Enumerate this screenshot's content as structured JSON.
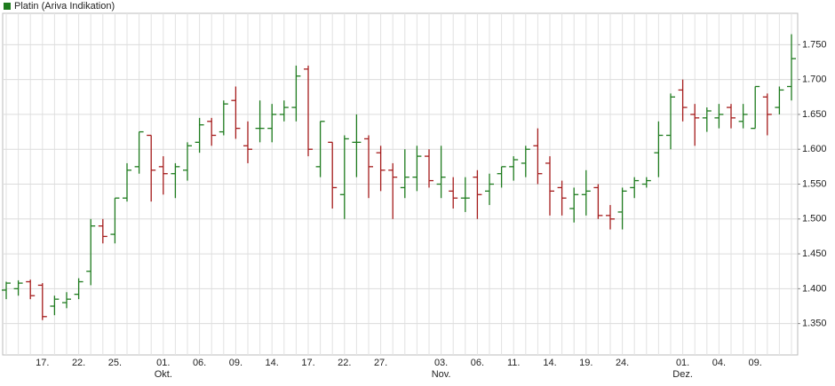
{
  "chart_data": {
    "type": "ohlc",
    "legend": "Platin (Ariva Indikation)",
    "up_color": "#1e7b1e",
    "down_color": "#a51c1c",
    "grid": true,
    "categories": [
      null,
      null,
      null,
      "17.",
      null,
      null,
      "22.",
      null,
      null,
      "25.",
      null,
      null,
      null,
      "01. Okt.",
      null,
      null,
      "06.",
      null,
      null,
      "09.",
      null,
      null,
      "14.",
      null,
      null,
      "17.",
      null,
      null,
      "22.",
      null,
      null,
      "27.",
      null,
      null,
      null,
      null,
      "03. Nov.",
      null,
      null,
      "06.",
      null,
      null,
      "11.",
      null,
      null,
      "14.",
      null,
      null,
      "19.",
      null,
      null,
      "24.",
      null,
      null,
      null,
      null,
      "01. Dez.",
      null,
      null,
      "04.",
      null,
      null,
      "09.",
      null,
      null,
      null
    ],
    "open": [
      1398,
      1400,
      1410,
      1405,
      1375,
      1380,
      1392,
      1425,
      1490,
      1478,
      1530,
      1575,
      1620,
      1575,
      1565,
      1570,
      1610,
      1640,
      1625,
      1670,
      1605,
      1630,
      1630,
      1650,
      1660,
      1715,
      1575,
      1610,
      1535,
      1610,
      1615,
      1595,
      1570,
      1545,
      1560,
      1590,
      1550,
      1540,
      1530,
      1560,
      1540,
      1565,
      1575,
      1580,
      1605,
      1580,
      1545,
      1515,
      1535,
      1545,
      1505,
      1510,
      1545,
      1550,
      1595,
      1620,
      1685,
      1650,
      1645,
      1645,
      1660,
      1640,
      1630,
      1675,
      1660,
      1690
    ],
    "high": [
      1410,
      1412,
      1413,
      1408,
      1390,
      1395,
      1415,
      1500,
      1500,
      1530,
      1580,
      1625,
      1620,
      1590,
      1580,
      1610,
      1645,
      1645,
      1670,
      1690,
      1640,
      1670,
      1665,
      1670,
      1720,
      1720,
      1640,
      1610,
      1620,
      1650,
      1620,
      1605,
      1580,
      1600,
      1605,
      1600,
      1605,
      1560,
      1560,
      1570,
      1565,
      1575,
      1590,
      1605,
      1630,
      1590,
      1555,
      1545,
      1570,
      1550,
      1520,
      1545,
      1560,
      1560,
      1640,
      1680,
      1700,
      1665,
      1660,
      1665,
      1665,
      1665,
      1690,
      1680,
      1690,
      1765
    ],
    "low": [
      1385,
      1390,
      1385,
      1355,
      1362,
      1372,
      1385,
      1405,
      1465,
      1465,
      1525,
      1565,
      1525,
      1535,
      1530,
      1555,
      1595,
      1605,
      1620,
      1615,
      1580,
      1610,
      1610,
      1640,
      1640,
      1590,
      1560,
      1515,
      1500,
      1560,
      1530,
      1540,
      1500,
      1530,
      1540,
      1545,
      1530,
      1515,
      1510,
      1500,
      1520,
      1545,
      1555,
      1560,
      1550,
      1505,
      1505,
      1495,
      1505,
      1500,
      1485,
      1485,
      1530,
      1545,
      1560,
      1600,
      1640,
      1605,
      1625,
      1630,
      1630,
      1630,
      1630,
      1620,
      1650,
      1670
    ],
    "close": [
      1408,
      1408,
      1390,
      1360,
      1385,
      1385,
      1410,
      1490,
      1475,
      1530,
      1570,
      1625,
      1570,
      1565,
      1575,
      1605,
      1635,
      1620,
      1665,
      1630,
      1600,
      1630,
      1650,
      1660,
      1705,
      1600,
      1640,
      1545,
      1615,
      1610,
      1575,
      1570,
      1560,
      1560,
      1590,
      1555,
      1560,
      1530,
      1530,
      1535,
      1550,
      1575,
      1585,
      1600,
      1565,
      1540,
      1530,
      1535,
      1540,
      1505,
      1500,
      1540,
      1555,
      1555,
      1620,
      1675,
      1660,
      1645,
      1655,
      1650,
      1645,
      1650,
      1690,
      1650,
      1685,
      1730
    ],
    "ylim": [
      1305,
      1795
    ],
    "yticks": [
      {
        "value": 1350,
        "label": "1.350"
      },
      {
        "value": 1400,
        "label": "1.400"
      },
      {
        "value": 1450,
        "label": "1.450"
      },
      {
        "value": 1500,
        "label": "1.500"
      },
      {
        "value": 1550,
        "label": "1.550"
      },
      {
        "value": 1600,
        "label": "1.600"
      },
      {
        "value": 1650,
        "label": "1.650"
      },
      {
        "value": 1700,
        "label": "1.700"
      },
      {
        "value": 1750,
        "label": "1.750"
      }
    ]
  }
}
